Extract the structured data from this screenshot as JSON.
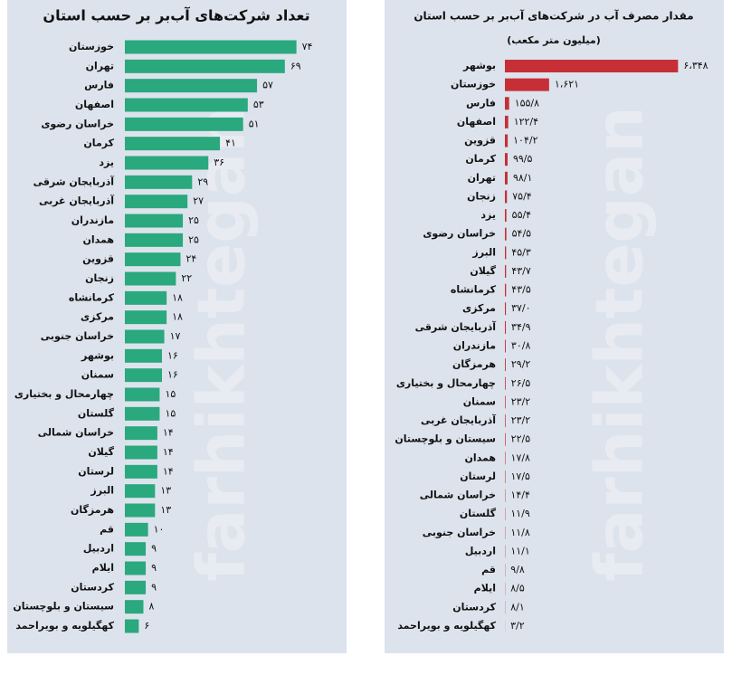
{
  "watermark": "farhikhtegan",
  "chart_data": [
    {
      "type": "bar",
      "orientation": "horizontal",
      "title": "تعداد شرکت‌های آب‌بر بر حسب استان",
      "color": "#2aa87e",
      "xlim": [
        0,
        80
      ],
      "categories": [
        "خوزستان",
        "تهران",
        "فارس",
        "اصفهان",
        "خراسان رضوی",
        "کرمان",
        "یزد",
        "آذربایجان شرقی",
        "آذربایجان غربی",
        "مازندران",
        "همدان",
        "قزوین",
        "زنجان",
        "کرمانشاه",
        "مرکزی",
        "خراسان جنوبی",
        "بوشهر",
        "سمنان",
        "چهارمحال و بختیاری",
        "گلستان",
        "خراسان شمالی",
        "گیلان",
        "لرستان",
        "البرز",
        "هرمزگان",
        "قم",
        "اردبیل",
        "ایلام",
        "کردستان",
        "سیستان و بلوچستان",
        "کهگیلویه و بویراحمد"
      ],
      "values": [
        74,
        69,
        57,
        53,
        51,
        41,
        36,
        29,
        27,
        25,
        25,
        24,
        22,
        18,
        18,
        17,
        16,
        16,
        15,
        15,
        14,
        14,
        14,
        13,
        13,
        10,
        9,
        9,
        9,
        8,
        6
      ],
      "value_labels": [
        "۷۴",
        "۶۹",
        "۵۷",
        "۵۳",
        "۵۱",
        "۴۱",
        "۳۶",
        "۲۹",
        "۲۷",
        "۲۵",
        "۲۵",
        "۲۴",
        "۲۲",
        "۱۸",
        "۱۸",
        "۱۷",
        "۱۶",
        "۱۶",
        "۱۵",
        "۱۵",
        "۱۴",
        "۱۴",
        "۱۴",
        "۱۳",
        "۱۳",
        "۱۰",
        "۹",
        "۹",
        "۹",
        "۸",
        "۶"
      ]
    },
    {
      "type": "bar",
      "orientation": "horizontal",
      "title": "مقدار مصرف آب در شرکت‌های آب‌بر بر حسب استان",
      "subtitle": "(میلیون متر مکعب)",
      "color": "#c62f36",
      "xlim": [
        0,
        6800
      ],
      "categories": [
        "بوشهر",
        "خوزستان",
        "فارس",
        "اصفهان",
        "قزوین",
        "کرمان",
        "تهران",
        "زنجان",
        "یزد",
        "خراسان رضوی",
        "البرز",
        "گیلان",
        "کرمانشاه",
        "مرکزی",
        "آذربایجان شرقی",
        "مازندران",
        "هرمزگان",
        "چهارمحال و بختیاری",
        "سمنان",
        "آذربایجان غربی",
        "سیستان و بلوچستان",
        "همدان",
        "لرستان",
        "خراسان شمالی",
        "گلستان",
        "خراسان جنوبی",
        "اردبیل",
        "قم",
        "ایلام",
        "کردستان",
        "کهگیلویه و بویراحمد"
      ],
      "values": [
        6348,
        1621,
        155.8,
        122.4,
        104.2,
        99.5,
        98.1,
        75.4,
        55.4,
        54.5,
        45.3,
        43.7,
        43.5,
        37.0,
        34.9,
        30.8,
        29.2,
        26.5,
        23.2,
        23.2,
        22.5,
        17.8,
        17.5,
        14.4,
        11.9,
        11.8,
        11.1,
        9.8,
        8.5,
        8.1,
        3.2
      ],
      "value_labels": [
        "۶،۳۴۸",
        "۱،۶۲۱",
        "۱۵۵/۸",
        "۱۲۲/۴",
        "۱۰۴/۲",
        "۹۹/۵",
        "۹۸/۱",
        "۷۵/۴",
        "۵۵/۴",
        "۵۴/۵",
        "۴۵/۳",
        "۴۳/۷",
        "۴۳/۵",
        "۳۷/۰",
        "۳۴/۹",
        "۳۰/۸",
        "۲۹/۲",
        "۲۶/۵",
        "۲۳/۲",
        "۲۳/۲",
        "۲۲/۵",
        "۱۷/۸",
        "۱۷/۵",
        "۱۴/۴",
        "۱۱/۹",
        "۱۱/۸",
        "۱۱/۱",
        "۹/۸",
        "۸/۵",
        "۸/۱",
        "۳/۲"
      ]
    }
  ]
}
